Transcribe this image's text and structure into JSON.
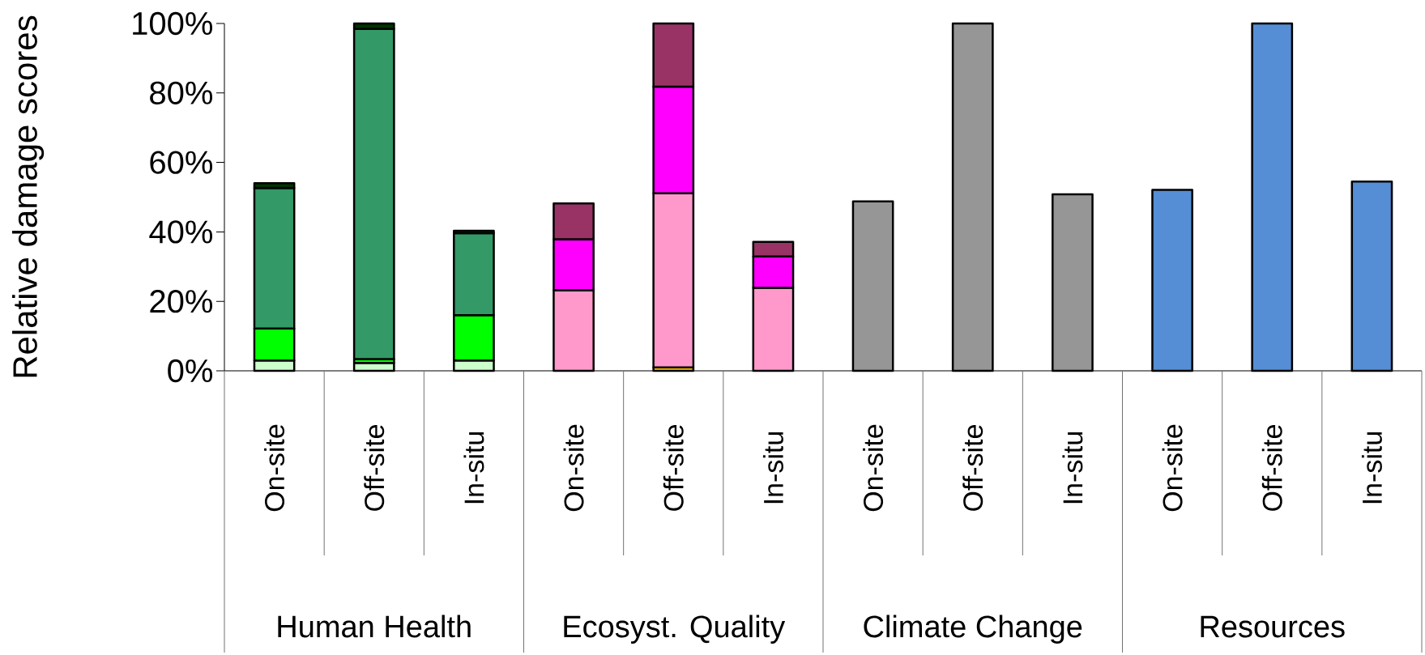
{
  "chart_data": {
    "type": "bar",
    "stacked": true,
    "ylabel": "Relative damage scores",
    "categories": [
      "On-site",
      "Off-site",
      "In-situ",
      "On-site",
      "Off-site",
      "In-situ",
      "On-site",
      "Off-site",
      "In-situ",
      "On-site",
      "Off-site",
      "In-situ"
    ],
    "annotations": [
      "Human Health",
      "Ecosyst. Quality",
      "Climate Change",
      "Resources"
    ],
    "ylim": [
      0,
      100
    ],
    "yticks": [
      {
        "value": 0,
        "label": "0%"
      },
      {
        "value": 20,
        "label": "20%"
      },
      {
        "value": 40,
        "label": "40%"
      },
      {
        "value": 60,
        "label": "60%"
      },
      {
        "value": 80,
        "label": "80%"
      },
      {
        "value": 100,
        "label": "100%"
      }
    ],
    "grid": false,
    "series": [
      {
        "color": "#ccffcc",
        "values": [
          3.0,
          2.3,
          3.0,
          null,
          null,
          null,
          null,
          null,
          null,
          null,
          null,
          null
        ]
      },
      {
        "color": "#00ff00",
        "values": [
          9.2,
          1.1,
          13.0,
          null,
          null,
          null,
          null,
          null,
          null,
          null,
          null,
          null
        ]
      },
      {
        "color": "#339966",
        "values": [
          40.4,
          95.0,
          23.6,
          null,
          null,
          null,
          null,
          null,
          null,
          null,
          null,
          null
        ]
      },
      {
        "color": "#003300",
        "values": [
          1.4,
          1.6,
          0.7,
          null,
          null,
          null,
          null,
          null,
          null,
          null,
          null,
          null
        ]
      },
      {
        "color": "#ffc000",
        "values": [
          null,
          null,
          null,
          null,
          1.0,
          null,
          null,
          null,
          null,
          null,
          null,
          null
        ]
      },
      {
        "color": "#ff99cc",
        "values": [
          null,
          null,
          null,
          23.2,
          50.1,
          23.9,
          null,
          null,
          null,
          null,
          null,
          null
        ]
      },
      {
        "color": "#ff00ff",
        "values": [
          null,
          null,
          null,
          14.7,
          30.7,
          9.0,
          null,
          null,
          null,
          null,
          null,
          null
        ]
      },
      {
        "color": "#993366",
        "values": [
          null,
          null,
          null,
          10.3,
          18.2,
          4.2,
          null,
          null,
          null,
          null,
          null,
          null
        ]
      },
      {
        "color": "#969696",
        "values": [
          null,
          null,
          null,
          null,
          null,
          null,
          48.8,
          100,
          50.8,
          null,
          null,
          null
        ]
      },
      {
        "color": "#558ed5",
        "values": [
          null,
          null,
          null,
          null,
          null,
          null,
          null,
          null,
          null,
          52.1,
          100,
          54.5
        ]
      }
    ]
  }
}
